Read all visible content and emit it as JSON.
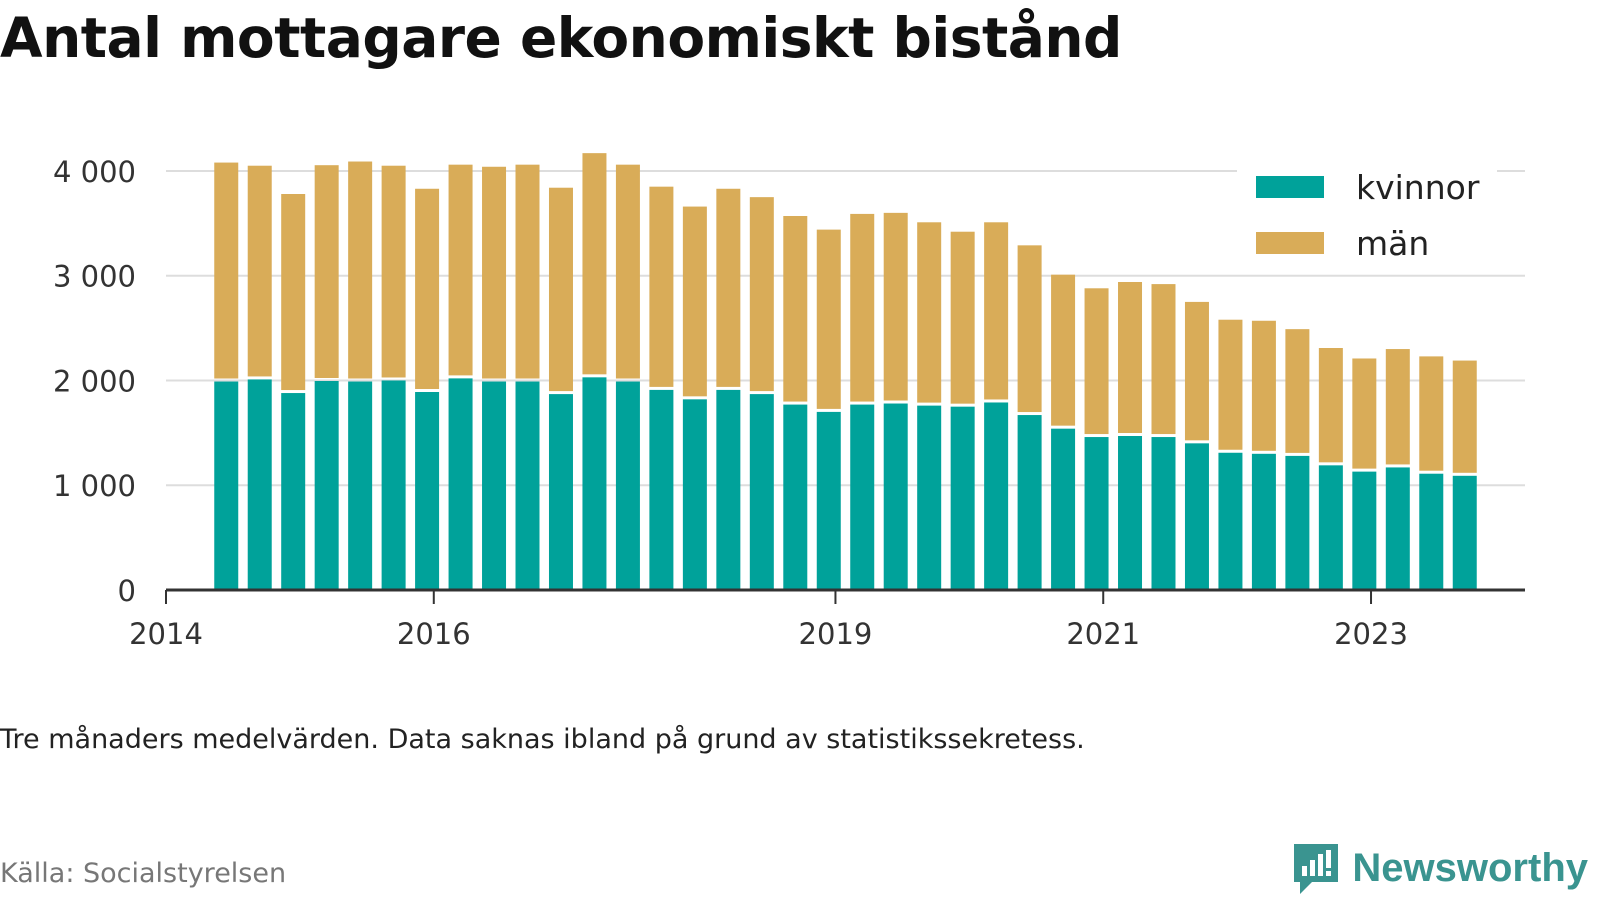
{
  "title": "Antal mottagare ekonomiskt bistånd",
  "note": "Tre månaders medelvärden. Data saknas ibland på grund av statistikssekretess.",
  "source": "Källa: Socialstyrelsen",
  "brand": {
    "name": "Newsworthy",
    "icon": "newsworthy-logo-icon",
    "color": "#3a9490"
  },
  "colors": {
    "kvinnor": "#00a29a",
    "man": "#d9ac58",
    "grid": "#dddddd",
    "axis": "#333333"
  },
  "chart_data": {
    "type": "bar",
    "stacked": true,
    "title": "Antal mottagare ekonomiskt bistånd",
    "ylim": [
      0,
      4200
    ],
    "yticks": [
      0,
      1000,
      2000,
      3000,
      4000
    ],
    "ytick_labels": [
      "0",
      "1 000",
      "2 000",
      "3 000",
      "4 000"
    ],
    "xlim": [
      2014.0,
      2024.15
    ],
    "xticks": [
      2014,
      2016,
      2019,
      2021,
      2023
    ],
    "xtick_labels": [
      "2014",
      "2016",
      "2019",
      "2021",
      "2023"
    ],
    "grid": true,
    "legend_position": "top-right",
    "x": [
      2014.45,
      2014.7,
      2014.95,
      2015.2,
      2015.45,
      2015.7,
      2015.95,
      2016.2,
      2016.45,
      2016.7,
      2016.95,
      2017.2,
      2017.45,
      2017.7,
      2017.95,
      2018.2,
      2018.45,
      2018.7,
      2018.95,
      2019.2,
      2019.45,
      2019.7,
      2019.95,
      2020.2,
      2020.45,
      2020.7,
      2020.95,
      2021.2,
      2021.45,
      2021.7,
      2021.95,
      2022.2,
      2022.45,
      2022.7,
      2022.95,
      2023.2,
      2023.45,
      2023.7
    ],
    "series": [
      {
        "name": "kvinnor",
        "color": "#00a29a",
        "values": [
          1990,
          2010,
          1880,
          1995,
          1990,
          2000,
          1890,
          2020,
          1990,
          1990,
          1870,
          2030,
          1990,
          1910,
          1820,
          1910,
          1870,
          1770,
          1700,
          1770,
          1780,
          1760,
          1750,
          1790,
          1670,
          1540,
          1460,
          1470,
          1460,
          1400,
          1310,
          1300,
          1280,
          1190,
          1130,
          1170,
          1110,
          1090
        ]
      },
      {
        "name": "män",
        "color": "#d9ac58",
        "values": [
          2090,
          2040,
          1900,
          2060,
          2100,
          2050,
          1940,
          2040,
          2050,
          2070,
          1970,
          2140,
          2070,
          1940,
          1840,
          1920,
          1880,
          1800,
          1740,
          1820,
          1820,
          1750,
          1670,
          1720,
          1620,
          1470,
          1420,
          1470,
          1460,
          1350,
          1270,
          1270,
          1210,
          1120,
          1080,
          1130,
          1120,
          1100
        ]
      }
    ]
  }
}
